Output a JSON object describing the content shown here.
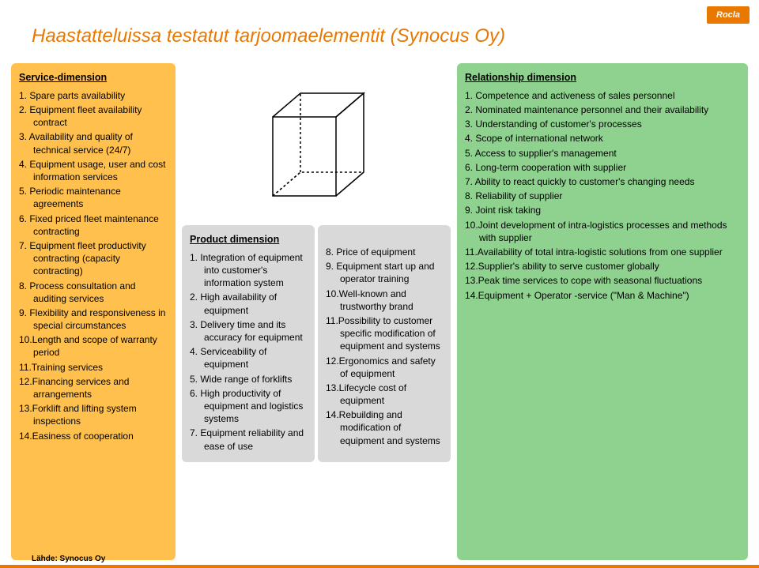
{
  "logo_text": "Rocla",
  "title": "Haastatteluissa testatut tarjoomaelementit (Synocus Oy)",
  "source": "Lähde: Synocus Oy",
  "accent_color": "#e87800",
  "service": {
    "heading": "Service-dimension",
    "bg": "#ffc04d",
    "items": [
      "1. Spare parts availability",
      "2. Equipment fleet availability contract",
      "3. Availability and quality of technical service (24/7)",
      "4. Equipment usage, user and cost information services",
      "5. Periodic maintenance agreements",
      "6. Fixed priced fleet maintenance contracting",
      "7. Equipment fleet productivity contracting (capacity contracting)",
      "8. Process consultation and auditing services",
      "9. Flexibility and responsiveness in special circumstances",
      "10.Length and scope of warranty period",
      "11.Training services",
      "12.Financing services and arrangements",
      "13.Forklift and lifting system inspections",
      "14.Easiness of cooperation"
    ]
  },
  "product": {
    "heading": "Product dimension",
    "bg": "#d9d9d9",
    "items_left": [
      "1. Integration of equipment into customer's information system",
      "2. High availability of equipment",
      "3. Delivery time and its accuracy for equipment",
      "4. Serviceability of equipment",
      "5. Wide range of forklifts",
      "6. High productivity of equipment and logistics systems",
      "7. Equipment reliability and ease of use"
    ],
    "items_right": [
      "8. Price of equipment",
      "9. Equipment start up and operator training",
      "10.Well-known and trustworthy brand",
      "11.Possibility to customer specific modification of equipment and systems",
      "12.Ergonomics and safety of equipment",
      "13.Lifecycle cost of equipment",
      "14.Rebuilding and modification of equipment and systems"
    ]
  },
  "relationship": {
    "heading": "Relationship dimension",
    "bg": "#8fd18f",
    "items": [
      "1. Competence and activeness of sales personnel",
      "2. Nominated maintenance personnel and their availability",
      "3. Understanding of customer's processes",
      "4. Scope of international network",
      "5. Access to supplier's management",
      "6. Long-term cooperation with supplier",
      "7. Ability to react quickly to customer's changing needs",
      "8. Reliability of supplier",
      "9. Joint risk taking",
      "10.Joint development of intra-logistics processes and methods with supplier",
      "11.Availability of total intra-logistic solutions from one supplier",
      "12.Supplier's ability to serve customer globally",
      "13.Peak time services to cope with seasonal fluctuations",
      "14.Equipment + Operator -service (\"Man & Machine\")"
    ]
  }
}
